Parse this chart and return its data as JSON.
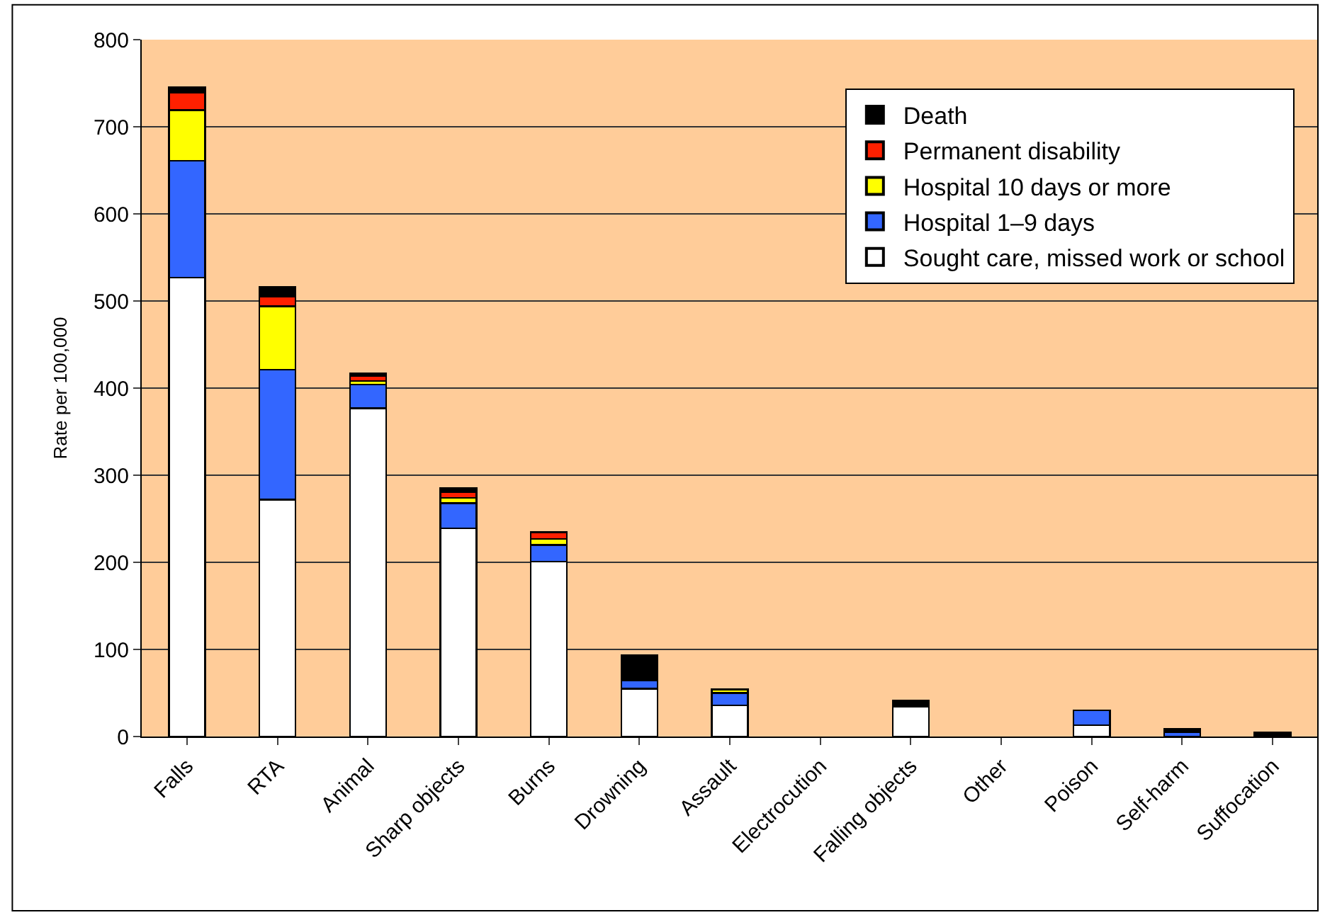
{
  "chart_data": {
    "type": "bar",
    "stacked": true,
    "ylabel": "Rate per 100,000",
    "categories": [
      "Falls",
      "RTA",
      "Animal",
      "Sharp objects",
      "Burns",
      "Drowning",
      "Assault",
      "Electrocution",
      "Falling objects",
      "Other",
      "Poison",
      "Self-harm",
      "Suffocation"
    ],
    "series": [
      {
        "name": "Sought care, missed work or school",
        "color": "#ffffff",
        "values": [
          527,
          272,
          377,
          239,
          201,
          55,
          36,
          0,
          34,
          0,
          13,
          0,
          0
        ]
      },
      {
        "name": "Hospital 1–9 days",
        "color": "#3366ff",
        "values": [
          134,
          149,
          27,
          29,
          19,
          9,
          14,
          0,
          0,
          0,
          17,
          5,
          0
        ]
      },
      {
        "name": "Hospital 10 days or more",
        "color": "#ffff00",
        "values": [
          58,
          73,
          4,
          6,
          7,
          0,
          4,
          0,
          0,
          0,
          0,
          0,
          0
        ]
      },
      {
        "name": "Permanent disability",
        "color": "#ff2000",
        "values": [
          20,
          11,
          6,
          7,
          7,
          0,
          0,
          0,
          0,
          0,
          0,
          0,
          0
        ]
      },
      {
        "name": "Death",
        "color": "#000000",
        "values": [
          6,
          11,
          3,
          4,
          1,
          29,
          0,
          0,
          7,
          0,
          0,
          4,
          5
        ]
      }
    ],
    "ylim": [
      0,
      800
    ],
    "yticks": [
      0,
      100,
      200,
      300,
      400,
      500,
      600,
      700,
      800
    ],
    "grid": "y",
    "legend": "top right"
  }
}
